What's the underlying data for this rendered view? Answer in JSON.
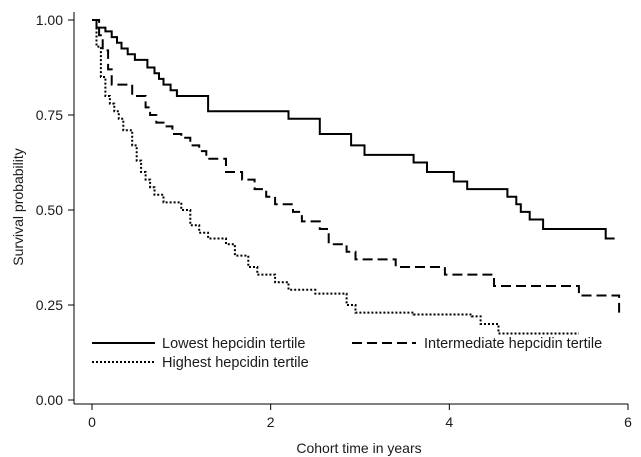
{
  "chart_data": {
    "type": "line",
    "subtype": "step",
    "title": "",
    "xlabel": "Cohort time in years",
    "ylabel": "Survival probability",
    "xlim": [
      0,
      6
    ],
    "ylim": [
      0,
      1
    ],
    "x_ticks": [
      0,
      2,
      4,
      6
    ],
    "y_ticks": [
      0,
      0.25,
      0.5,
      0.75,
      1
    ],
    "y_tick_labels": [
      "0.00",
      "0.25",
      "0.50",
      "0.75",
      "1.00"
    ],
    "grid": false,
    "legend_position": "bottom-left",
    "series": [
      {
        "name": "Lowest hepcidin tertile",
        "line_style": "solid",
        "color": "#000000",
        "points": [
          [
            0,
            1.0
          ],
          [
            0.05,
            0.98
          ],
          [
            0.15,
            0.97
          ],
          [
            0.22,
            0.955
          ],
          [
            0.28,
            0.94
          ],
          [
            0.33,
            0.925
          ],
          [
            0.4,
            0.91
          ],
          [
            0.48,
            0.895
          ],
          [
            0.62,
            0.875
          ],
          [
            0.7,
            0.86
          ],
          [
            0.75,
            0.845
          ],
          [
            0.8,
            0.83
          ],
          [
            0.88,
            0.815
          ],
          [
            0.95,
            0.8
          ],
          [
            1.3,
            0.76
          ],
          [
            2.2,
            0.74
          ],
          [
            2.55,
            0.7
          ],
          [
            2.9,
            0.67
          ],
          [
            3.05,
            0.645
          ],
          [
            3.6,
            0.625
          ],
          [
            3.75,
            0.6
          ],
          [
            4.05,
            0.575
          ],
          [
            4.2,
            0.555
          ],
          [
            4.65,
            0.535
          ],
          [
            4.75,
            0.515
          ],
          [
            4.8,
            0.495
          ],
          [
            4.9,
            0.475
          ],
          [
            5.05,
            0.45
          ],
          [
            5.75,
            0.425
          ],
          [
            5.85,
            0.425
          ]
        ]
      },
      {
        "name": "Intermediate hepcidin tertile",
        "line_style": "dashed",
        "color": "#000000",
        "points": [
          [
            0,
            1.0
          ],
          [
            0.08,
            0.96
          ],
          [
            0.12,
            0.92
          ],
          [
            0.18,
            0.87
          ],
          [
            0.22,
            0.83
          ],
          [
            0.45,
            0.8
          ],
          [
            0.6,
            0.77
          ],
          [
            0.65,
            0.75
          ],
          [
            0.72,
            0.73
          ],
          [
            0.8,
            0.72
          ],
          [
            0.9,
            0.7
          ],
          [
            1.0,
            0.69
          ],
          [
            1.1,
            0.67
          ],
          [
            1.2,
            0.655
          ],
          [
            1.28,
            0.635
          ],
          [
            1.5,
            0.6
          ],
          [
            1.68,
            0.58
          ],
          [
            1.82,
            0.555
          ],
          [
            1.95,
            0.535
          ],
          [
            2.05,
            0.515
          ],
          [
            2.25,
            0.495
          ],
          [
            2.35,
            0.47
          ],
          [
            2.55,
            0.45
          ],
          [
            2.65,
            0.41
          ],
          [
            2.85,
            0.39
          ],
          [
            2.95,
            0.37
          ],
          [
            3.4,
            0.35
          ],
          [
            3.95,
            0.33
          ],
          [
            4.5,
            0.3
          ],
          [
            5.45,
            0.275
          ],
          [
            5.9,
            0.23
          ]
        ]
      },
      {
        "name": "Highest hepcidin tertile",
        "line_style": "dotted",
        "color": "#000000",
        "points": [
          [
            0,
            1.0
          ],
          [
            0.05,
            0.93
          ],
          [
            0.1,
            0.85
          ],
          [
            0.15,
            0.8
          ],
          [
            0.2,
            0.78
          ],
          [
            0.25,
            0.76
          ],
          [
            0.3,
            0.74
          ],
          [
            0.35,
            0.71
          ],
          [
            0.45,
            0.67
          ],
          [
            0.5,
            0.63
          ],
          [
            0.55,
            0.6
          ],
          [
            0.6,
            0.58
          ],
          [
            0.65,
            0.56
          ],
          [
            0.7,
            0.54
          ],
          [
            0.8,
            0.52
          ],
          [
            1.0,
            0.5
          ],
          [
            1.1,
            0.46
          ],
          [
            1.2,
            0.44
          ],
          [
            1.3,
            0.425
          ],
          [
            1.5,
            0.41
          ],
          [
            1.6,
            0.38
          ],
          [
            1.75,
            0.35
          ],
          [
            1.85,
            0.33
          ],
          [
            2.05,
            0.31
          ],
          [
            2.2,
            0.29
          ],
          [
            2.5,
            0.28
          ],
          [
            2.85,
            0.25
          ],
          [
            2.95,
            0.23
          ],
          [
            3.6,
            0.225
          ],
          [
            4.25,
            0.22
          ],
          [
            4.35,
            0.2
          ],
          [
            4.55,
            0.175
          ],
          [
            5.45,
            0.175
          ]
        ]
      }
    ]
  }
}
